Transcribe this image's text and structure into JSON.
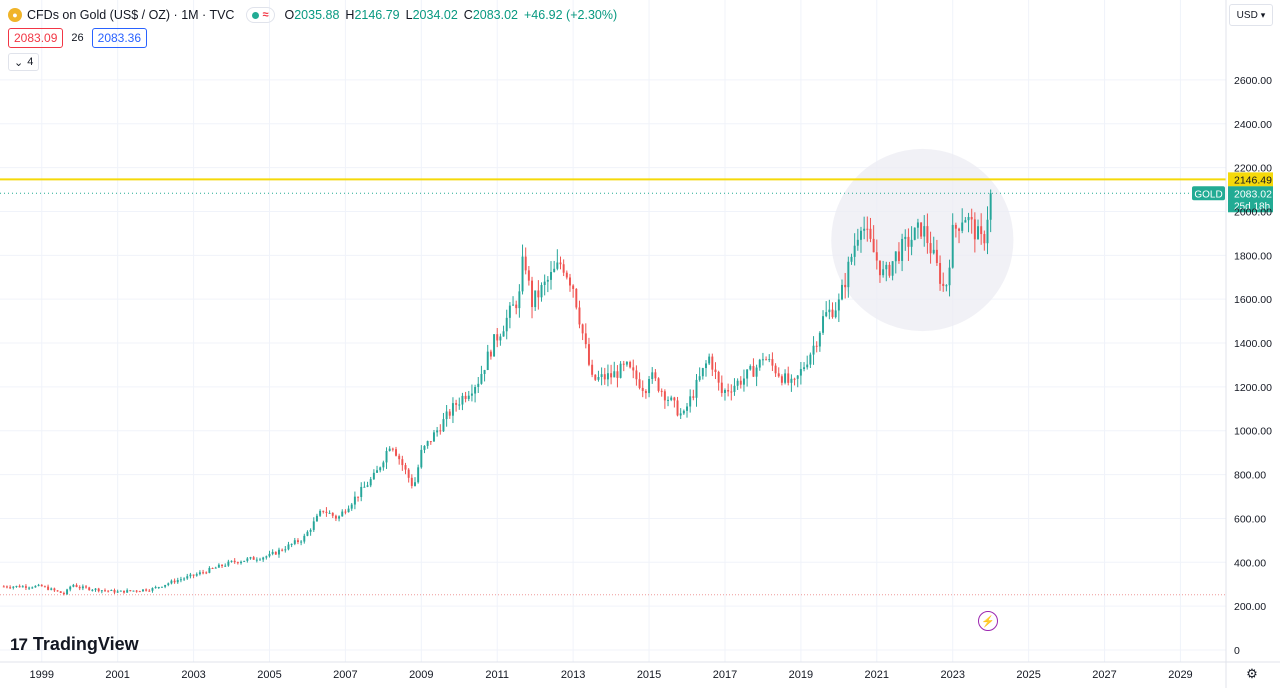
{
  "header": {
    "symbol_title": "CFDs on Gold (US$ / OZ) · 1M · TVC",
    "status_icon": "approx-icon",
    "ohlc": {
      "o_label": "O",
      "o_value": "2035.88",
      "h_label": "H",
      "h_value": "2146.79",
      "l_label": "L",
      "l_value": "2034.02",
      "c_label": "C",
      "c_value": "2083.02",
      "change": "+46.92 (+2.30%)"
    },
    "sell_price": "2083.09",
    "spread": "26",
    "buy_price": "2083.36",
    "indicators_count": "4",
    "currency": "USD"
  },
  "branding": {
    "logo_mark": "17",
    "logo_text": "TradingView"
  },
  "colors": {
    "up": "#26a69a",
    "down": "#ef5350",
    "highlight_line": "#f5d90a",
    "current_price": "#22ab94",
    "circle_fill": "#ebebf2",
    "grid": "#f0f3fa"
  },
  "chart_data": {
    "type": "candlestick",
    "interval": "1M",
    "symbol": "GOLD",
    "xlim": [
      1997.9,
      2030.2
    ],
    "ylim": [
      0,
      2700
    ],
    "x_ticks": [
      "1999",
      "2001",
      "2003",
      "2005",
      "2007",
      "2009",
      "2011",
      "2013",
      "2015",
      "2017",
      "2019",
      "2021",
      "2023",
      "2025",
      "2027",
      "2029"
    ],
    "y_ticks": [
      "0",
      "200.00",
      "400.00",
      "600.00",
      "800.00",
      "1000.00",
      "1200.00",
      "1400.00",
      "1600.00",
      "1800.00",
      "2000.00",
      "2200.00",
      "2400.00",
      "2600.00"
    ],
    "horizontal_line": {
      "price": 2146.49,
      "label": "2146.49"
    },
    "current_price": {
      "price": 2083.02,
      "label": "2083.02",
      "symbol_label": "GOLD",
      "countdown": "25d 18h"
    },
    "reference_line": {
      "price": 252
    },
    "highlight_circle": {
      "center_x": 2022.2,
      "center_y": 1870,
      "radius_years": 2.4
    },
    "anchors": [
      [
        1998.0,
        290
      ],
      [
        1999.0,
        290
      ],
      [
        1999.6,
        255
      ],
      [
        1999.8,
        300
      ],
      [
        2000.0,
        285
      ],
      [
        2001.0,
        265
      ],
      [
        2001.9,
        278
      ],
      [
        2002.5,
        315
      ],
      [
        2003.0,
        340
      ],
      [
        2004.0,
        400
      ],
      [
        2005.0,
        430
      ],
      [
        2005.9,
        510
      ],
      [
        2006.4,
        640
      ],
      [
        2006.8,
        600
      ],
      [
        2007.0,
        645
      ],
      [
        2007.8,
        800
      ],
      [
        2008.2,
        950
      ],
      [
        2008.8,
        740
      ],
      [
        2009.0,
        900
      ],
      [
        2009.9,
        1120
      ],
      [
        2010.5,
        1230
      ],
      [
        2010.9,
        1400
      ],
      [
        2011.6,
        1620
      ],
      [
        2011.7,
        1820
      ],
      [
        2011.9,
        1580
      ],
      [
        2012.7,
        1770
      ],
      [
        2013.0,
        1660
      ],
      [
        2013.3,
        1400
      ],
      [
        2013.5,
        1230
      ],
      [
        2014.0,
        1250
      ],
      [
        2014.4,
        1290
      ],
      [
        2014.9,
        1190
      ],
      [
        2015.0,
        1260
      ],
      [
        2015.9,
        1060
      ],
      [
        2016.0,
        1110
      ],
      [
        2016.6,
        1340
      ],
      [
        2016.9,
        1170
      ],
      [
        2017.5,
        1240
      ],
      [
        2017.9,
        1300
      ],
      [
        2018.0,
        1340
      ],
      [
        2018.6,
        1230
      ],
      [
        2018.8,
        1200
      ],
      [
        2019.4,
        1410
      ],
      [
        2019.6,
        1520
      ],
      [
        2020.0,
        1580
      ],
      [
        2020.6,
        1970
      ],
      [
        2020.7,
        1900
      ],
      [
        2021.2,
        1700
      ],
      [
        2021.5,
        1800
      ],
      [
        2022.2,
        1930
      ],
      [
        2022.4,
        1840
      ],
      [
        2022.8,
        1630
      ],
      [
        2023.0,
        1900
      ],
      [
        2023.3,
        1990
      ],
      [
        2023.8,
        1850
      ],
      [
        2024.0,
        2083
      ]
    ]
  }
}
